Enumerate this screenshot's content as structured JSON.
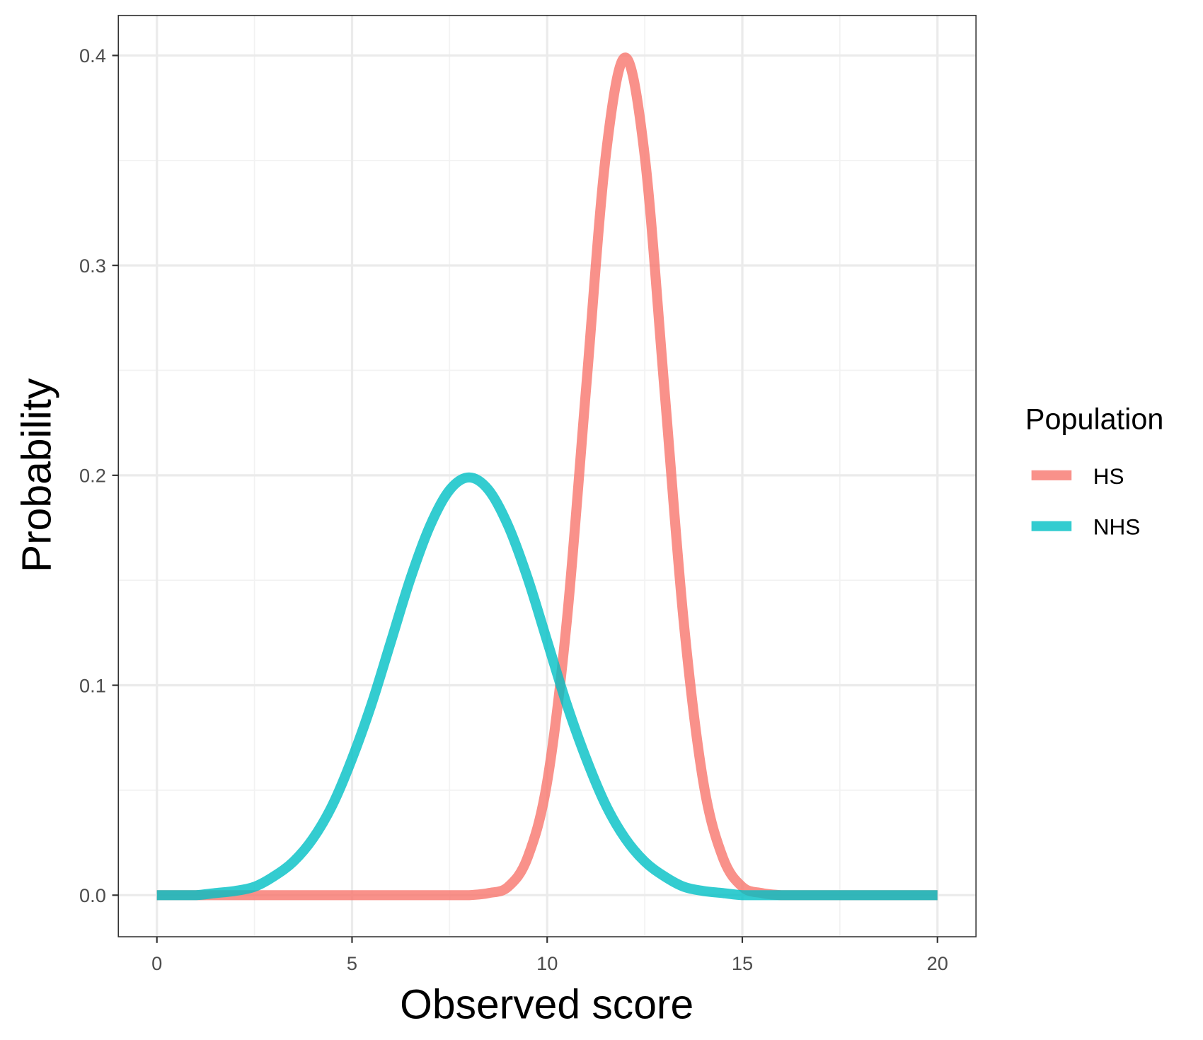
{
  "chart_data": {
    "type": "line",
    "title": "",
    "xlabel": "Observed score",
    "ylabel": "Probability",
    "xlim": [
      0,
      20
    ],
    "ylim": [
      -0.02,
      0.42
    ],
    "x_ticks": [
      "0",
      "5",
      "10",
      "15",
      "20"
    ],
    "y_ticks": [
      "0.0",
      "0.1",
      "0.2",
      "0.3",
      "0.4"
    ],
    "grid": true,
    "legend": {
      "title": "Population",
      "position": "right"
    },
    "x": [
      0,
      0.5,
      1,
      1.5,
      2,
      2.5,
      3,
      3.5,
      4,
      4.5,
      5,
      5.5,
      6,
      6.5,
      7,
      7.5,
      8,
      8.5,
      9,
      9.5,
      10,
      10.5,
      11,
      11.5,
      12,
      12.5,
      13,
      13.5,
      14,
      14.5,
      15,
      15.5,
      16,
      16.5,
      17,
      17.5,
      18,
      18.5,
      19,
      19.5,
      20
    ],
    "series": [
      {
        "name": "HS",
        "color": "#F8766D",
        "values": [
          0,
          0,
          0,
          0,
          0,
          0,
          0,
          0,
          0,
          0,
          0,
          0,
          0,
          0,
          0,
          0,
          0.0,
          0.001,
          0.004,
          0.018,
          0.054,
          0.13,
          0.242,
          0.352,
          0.399,
          0.352,
          0.242,
          0.13,
          0.054,
          0.018,
          0.004,
          0.001,
          0.0,
          0,
          0,
          0,
          0,
          0,
          0,
          0,
          0
        ]
      },
      {
        "name": "NHS",
        "color": "#00BFC4",
        "values": [
          0.0,
          0.0,
          0.0,
          0.001,
          0.002,
          0.004,
          0.009,
          0.016,
          0.027,
          0.043,
          0.065,
          0.091,
          0.121,
          0.151,
          0.176,
          0.193,
          0.199,
          0.193,
          0.176,
          0.151,
          0.121,
          0.091,
          0.065,
          0.043,
          0.027,
          0.016,
          0.009,
          0.004,
          0.002,
          0.001,
          0.0,
          0,
          0,
          0,
          0,
          0,
          0,
          0,
          0,
          0,
          0
        ]
      }
    ]
  }
}
